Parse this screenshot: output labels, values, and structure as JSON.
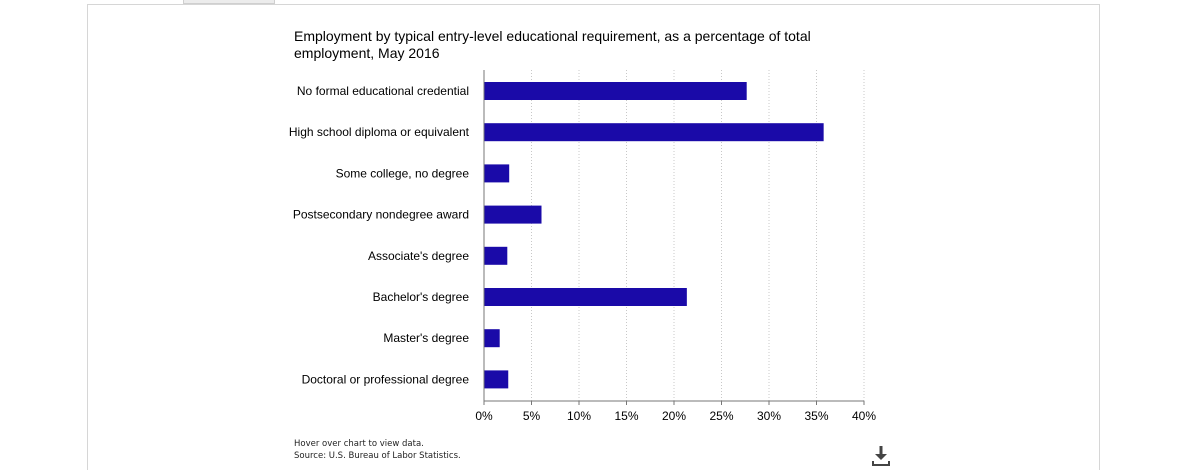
{
  "page": {
    "footnotes": {
      "hover_hint": "Hover over chart to view data.",
      "source": "Source: U.S. Bureau of Labor Statistics."
    },
    "icons": {
      "download": "download-icon"
    }
  },
  "chart_data": {
    "type": "bar",
    "orientation": "horizontal",
    "title": "Employment by typical entry-level educational requirement, as a percentage of total employment, May 2016",
    "categories": [
      "No formal educational credential",
      "High school diploma or equivalent",
      "Some college, no degree",
      "Postsecondary nondegree award",
      "Associate's degree",
      "Bachelor's degree",
      "Master's degree",
      "Doctoral or professional degree"
    ],
    "values": [
      27.6,
      35.7,
      2.6,
      6.0,
      2.4,
      21.3,
      1.6,
      2.5
    ],
    "xlim": [
      0,
      40
    ],
    "x_ticks": [
      0,
      5,
      10,
      15,
      20,
      25,
      30,
      35,
      40
    ],
    "x_tick_labels": [
      "0%",
      "5%",
      "10%",
      "15%",
      "20%",
      "25%",
      "30%",
      "35%",
      "40%"
    ],
    "xlabel": "",
    "ylabel": "",
    "grid": "vertical dotted",
    "legend": "none",
    "colors": {
      "bar": "#1a0aa8",
      "grid": "#c8c8c8",
      "axis": "#777777"
    }
  }
}
